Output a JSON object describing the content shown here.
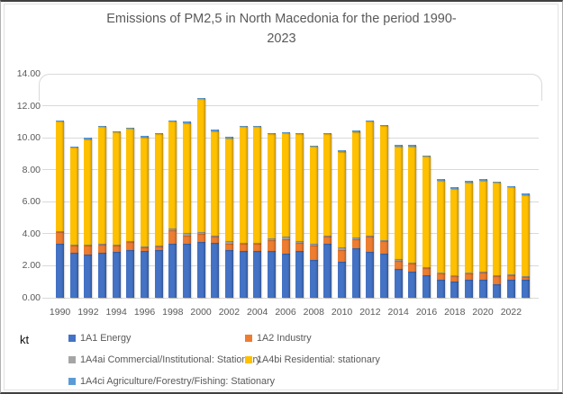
{
  "title": {
    "line1": "Emissions of PM2,5 in North Macedonia for the period 1990-",
    "line2": "2023"
  },
  "y_axis": {
    "unit_label": "kt",
    "ticks": [
      "0.00",
      "2.00",
      "4.00",
      "6.00",
      "8.00",
      "10.00",
      "12.00",
      "14.00"
    ],
    "min": 0,
    "max": 14,
    "step": 2
  },
  "x_axis": {
    "tick_labels": [
      "1990",
      "1992",
      "1994",
      "1996",
      "1998",
      "2000",
      "2002",
      "2004",
      "2006",
      "2008",
      "2010",
      "2012",
      "2014",
      "2016",
      "2018",
      "2020",
      "2022"
    ]
  },
  "colors": {
    "grid": "#d9d9d9",
    "axis_text": "#595959",
    "title_text": "#595959"
  },
  "legend": [
    {
      "label": "1A1 Energy",
      "color": "#4472C4"
    },
    {
      "label": "1A2 Industry",
      "color": "#ED7D31"
    },
    {
      "label": "1A4ai Commercial/Institutional: Stationary",
      "color": "#A5A5A5"
    },
    {
      "label": "1A4bi Residential: stationary",
      "color": "#FFC000"
    },
    {
      "label": "1A4ci Agriculture/Forestry/Fishing: Stationary",
      "color": "#5B9BD5"
    }
  ],
  "chart_data": {
    "type": "bar",
    "stacked": true,
    "title": "Emissions of PM2,5 in North Macedonia for the period 1990-2023",
    "xlabel": "",
    "ylabel": "kt",
    "ylim": [
      0,
      14
    ],
    "grid": true,
    "legend_position": "bottom",
    "categories": [
      1990,
      1991,
      1992,
      1993,
      1994,
      1995,
      1996,
      1997,
      1998,
      1999,
      2000,
      2001,
      2002,
      2003,
      2004,
      2005,
      2006,
      2007,
      2008,
      2009,
      2010,
      2011,
      2012,
      2013,
      2014,
      2015,
      2016,
      2017,
      2018,
      2019,
      2020,
      2021,
      2022,
      2023
    ],
    "series": [
      {
        "name": "1A1 Energy",
        "color": "#4472C4",
        "values": [
          3.4,
          2.8,
          2.7,
          2.8,
          2.85,
          3.0,
          2.9,
          3.0,
          3.35,
          3.4,
          3.5,
          3.45,
          3.0,
          2.9,
          2.9,
          2.95,
          2.75,
          2.9,
          2.35,
          3.35,
          2.25,
          3.1,
          2.85,
          2.75,
          1.8,
          1.65,
          1.4,
          1.15,
          1.0,
          1.1,
          1.1,
          0.85,
          1.1,
          1.1
        ]
      },
      {
        "name": "1A2 Industry",
        "color": "#ED7D31",
        "values": [
          0.7,
          0.45,
          0.55,
          0.5,
          0.4,
          0.5,
          0.25,
          0.2,
          0.85,
          0.5,
          0.5,
          0.4,
          0.4,
          0.45,
          0.45,
          0.65,
          0.9,
          0.55,
          0.9,
          0.45,
          0.75,
          0.55,
          0.95,
          0.8,
          0.5,
          0.5,
          0.45,
          0.4,
          0.38,
          0.45,
          0.5,
          0.52,
          0.32,
          0.22
        ]
      },
      {
        "name": "1A4ai Commercial/Institutional: Stationary",
        "color": "#A5A5A5",
        "values": [
          0.05,
          0.05,
          0.05,
          0.05,
          0.05,
          0.05,
          0.05,
          0.05,
          0.15,
          0.15,
          0.1,
          0.05,
          0.15,
          0.1,
          0.1,
          0.1,
          0.2,
          0.1,
          0.1,
          0.1,
          0.15,
          0.1,
          0.1,
          0.05,
          0.1,
          0.05,
          0.05,
          0.05,
          0.05,
          0.05,
          0.05,
          0.05,
          0.05,
          0.05
        ]
      },
      {
        "name": "1A4bi Residential: stationary",
        "color": "#FFC000",
        "values": [
          6.87,
          6.07,
          6.62,
          7.32,
          7.02,
          7.02,
          6.82,
          6.97,
          6.65,
          6.85,
          8.3,
          6.52,
          6.42,
          7.22,
          7.22,
          6.52,
          6.42,
          6.67,
          6.07,
          6.32,
          5.97,
          6.62,
          7.12,
          7.12,
          7.07,
          7.27,
          6.92,
          5.72,
          5.39,
          5.62,
          5.67,
          5.75,
          5.45,
          5.05
        ]
      },
      {
        "name": "1A4ci Agriculture/Forestry/Fishing: Stationary",
        "color": "#5B9BD5",
        "values": [
          0.08,
          0.08,
          0.08,
          0.08,
          0.08,
          0.08,
          0.08,
          0.08,
          0.1,
          0.1,
          0.1,
          0.08,
          0.08,
          0.08,
          0.08,
          0.08,
          0.08,
          0.08,
          0.08,
          0.08,
          0.08,
          0.08,
          0.08,
          0.08,
          0.08,
          0.08,
          0.08,
          0.08,
          0.08,
          0.08,
          0.08,
          0.08,
          0.08,
          0.08
        ]
      }
    ],
    "totals": [
      11.1,
      9.45,
      10.0,
      10.75,
      10.4,
      10.65,
      10.1,
      10.3,
      11.1,
      11.0,
      12.5,
      10.5,
      10.05,
      10.75,
      10.75,
      10.3,
      10.35,
      10.3,
      9.5,
      10.3,
      9.2,
      10.45,
      11.1,
      10.8,
      9.55,
      9.55,
      8.9,
      7.4,
      6.9,
      7.3,
      7.4,
      7.25,
      7.0,
      6.5
    ]
  }
}
